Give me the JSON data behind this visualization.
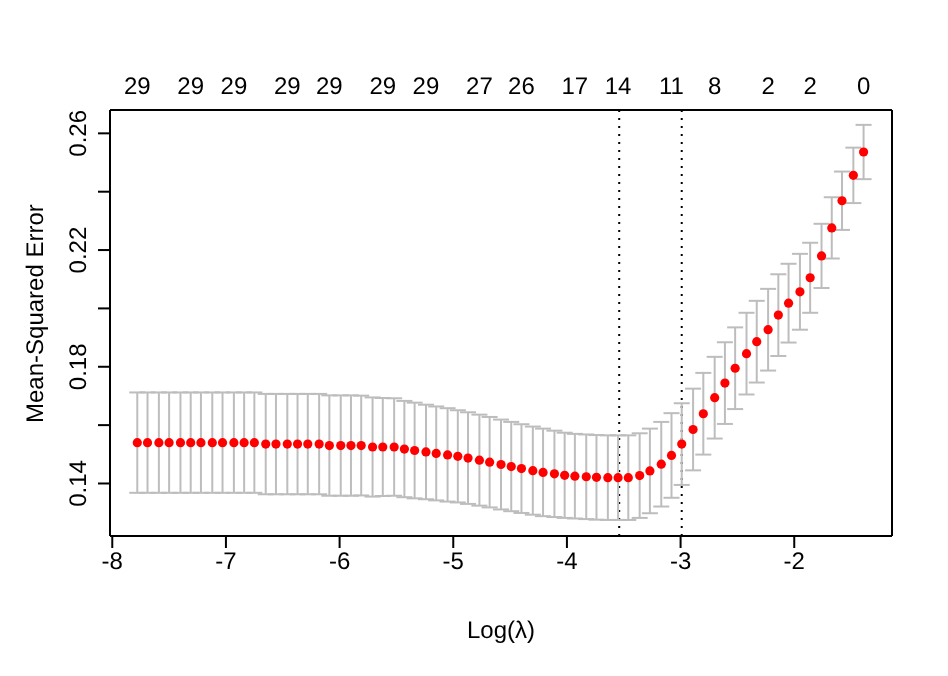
{
  "chart_data": {
    "type": "scatter",
    "xlabel": "Log(λ)",
    "ylabel": "Mean-Squared Error",
    "x": [
      -7.78,
      -7.69,
      -7.59,
      -7.5,
      -7.4,
      -7.31,
      -7.22,
      -7.12,
      -7.03,
      -6.93,
      -6.84,
      -6.75,
      -6.65,
      -6.56,
      -6.46,
      -6.37,
      -6.28,
      -6.18,
      -6.09,
      -5.99,
      -5.9,
      -5.81,
      -5.71,
      -5.62,
      -5.52,
      -5.43,
      -5.34,
      -5.24,
      -5.15,
      -5.05,
      -4.96,
      -4.87,
      -4.77,
      -4.68,
      -4.58,
      -4.49,
      -4.4,
      -4.3,
      -4.21,
      -4.11,
      -4.02,
      -3.93,
      -3.83,
      -3.74,
      -3.64,
      -3.55,
      -3.46,
      -3.36,
      -3.27,
      -3.17,
      -3.08,
      -2.99,
      -2.89,
      -2.8,
      -2.7,
      -2.61,
      -2.52,
      -2.42,
      -2.33,
      -2.23,
      -2.14,
      -2.05,
      -1.95,
      -1.86,
      -1.76,
      -1.67,
      -1.58,
      -1.48,
      -1.39
    ],
    "values": [
      0.154,
      0.154,
      0.154,
      0.154,
      0.154,
      0.154,
      0.154,
      0.154,
      0.154,
      0.154,
      0.154,
      0.154,
      0.1535,
      0.1535,
      0.1535,
      0.1535,
      0.1535,
      0.1535,
      0.153,
      0.153,
      0.153,
      0.153,
      0.1525,
      0.1525,
      0.1525,
      0.1518,
      0.1513,
      0.1508,
      0.1503,
      0.1498,
      0.1493,
      0.1487,
      0.148,
      0.1473,
      0.1465,
      0.1458,
      0.1451,
      0.1444,
      0.1438,
      0.1433,
      0.1428,
      0.1425,
      0.1423,
      0.1421,
      0.142,
      0.142,
      0.142,
      0.1427,
      0.1443,
      0.1466,
      0.1496,
      0.1535,
      0.1585,
      0.1639,
      0.1694,
      0.1744,
      0.1795,
      0.1845,
      0.1886,
      0.1927,
      0.1977,
      0.2018,
      0.2057,
      0.2105,
      0.218,
      0.2276,
      0.2369,
      0.2456,
      0.2536
    ],
    "errors": [
      0.0172,
      0.0172,
      0.0172,
      0.0172,
      0.0172,
      0.0172,
      0.0172,
      0.0172,
      0.0172,
      0.0172,
      0.0172,
      0.0172,
      0.0172,
      0.0172,
      0.0172,
      0.0172,
      0.0172,
      0.0172,
      0.0172,
      0.0172,
      0.0172,
      0.0171,
      0.017,
      0.0168,
      0.0167,
      0.0165,
      0.0164,
      0.0162,
      0.0161,
      0.016,
      0.0158,
      0.0157,
      0.0156,
      0.0155,
      0.0154,
      0.0153,
      0.0152,
      0.0151,
      0.015,
      0.0148,
      0.0146,
      0.0145,
      0.0145,
      0.0145,
      0.0145,
      0.0145,
      0.0145,
      0.0145,
      0.0145,
      0.0145,
      0.0145,
      0.014,
      0.014,
      0.014,
      0.014,
      0.014,
      0.014,
      0.014,
      0.014,
      0.014,
      0.014,
      0.0135,
      0.013,
      0.012,
      0.011,
      0.0105,
      0.01,
      0.0095,
      0.0093
    ],
    "color": "#ff0000",
    "marker": "circle",
    "xlim": [
      -8.02,
      -1.14
    ],
    "xticks": [
      -8,
      -7,
      -6,
      -5,
      -4,
      -3,
      -2
    ],
    "annotations": [
      "29",
      "29",
      "29",
      "29",
      "29",
      "29",
      "29",
      "27",
      "26",
      "17",
      "14",
      "11",
      "8",
      "2",
      "2",
      "0"
    ],
    "ylim": [
      0.122,
      0.268
    ],
    "yticks": [
      0.14,
      {
        "value": 0.16,
        "label": null
      },
      0.18,
      {
        "value": 0.2,
        "label": null
      },
      0.22,
      {
        "value": 0.24,
        "label": null
      },
      0.26
    ],
    "ref_lines": [
      {
        "axis": "x",
        "value": -3.54,
        "color": "#000000",
        "line_style": "dotted"
      },
      {
        "axis": "x",
        "value": -2.99,
        "color": "#000000",
        "line_style": "dotted"
      }
    ],
    "legend": false
  }
}
